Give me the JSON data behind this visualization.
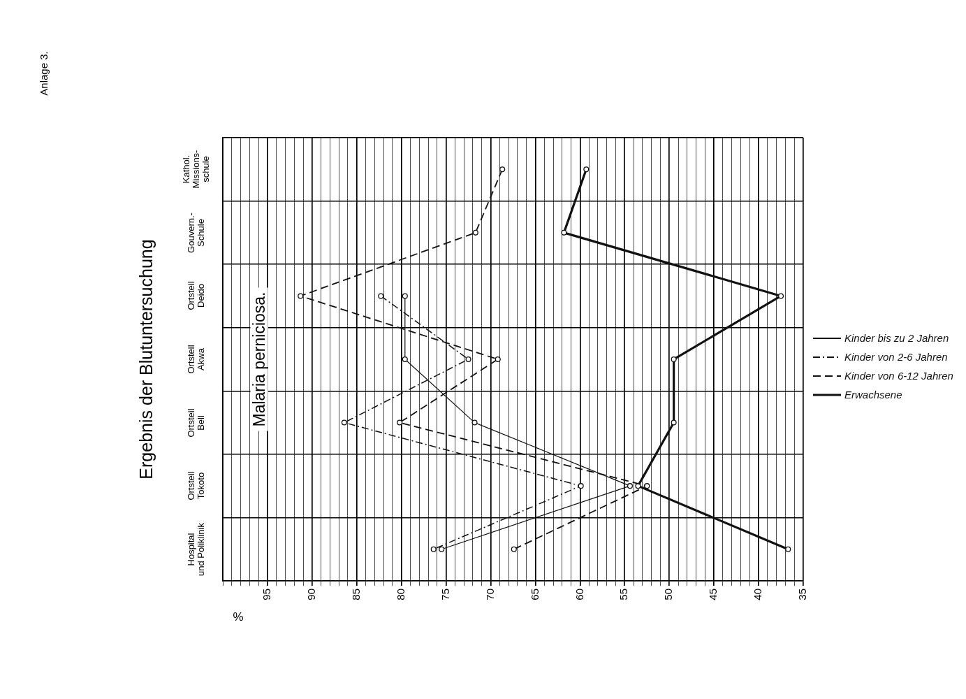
{
  "chart_data": {
    "type": "line",
    "orientation": "horizontal",
    "title": "Ergebnis der Blutuntersuchung",
    "subtitle": "Malaria perniciosa.",
    "xlabel": "%",
    "annotations": [
      "Anlage 3."
    ],
    "categories": [
      "Kathol.\nMissions-\nschule",
      "Gouvern.-\nSchule",
      "Ortsteil\nDeido",
      "Ortsteil\nAkwa",
      "Ortsteil\nBell",
      "Ortsteil\nTokoto",
      "Hospital\nund Poliklinik"
    ],
    "series": [
      {
        "name": "Kinder bis zu 2 Jahren",
        "color": "#111111",
        "line_style": "solid",
        "values": [
          null,
          null,
          79.6,
          79.6,
          71.8,
          54.4,
          75.5
        ]
      },
      {
        "name": "Kinder von 2-6 Jahren",
        "color": "#111111",
        "line_style": "dashdot",
        "values": [
          null,
          null,
          82.3,
          72.5,
          86.4,
          59.9,
          76.4
        ]
      },
      {
        "name": "Kinder von 6-12 Jahren",
        "color": "#111111",
        "line_style": "dashed",
        "values": [
          68.7,
          71.7,
          91.3,
          69.2,
          80.2,
          52.5,
          67.4
        ]
      },
      {
        "name": "Erwachsene",
        "color": "#111111",
        "line_style": "solid",
        "values": [
          59.3,
          61.8,
          37.5,
          49.5,
          49.5,
          53.5,
          36.7
        ]
      }
    ],
    "xlim": [
      100,
      35
    ],
    "xticks": [
      35,
      {
        "value": 36,
        "label": null
      },
      {
        "value": 37,
        "label": null
      },
      {
        "value": 38,
        "label": null
      },
      {
        "value": 39,
        "label": null
      },
      40,
      {
        "value": 41,
        "label": null
      },
      {
        "value": 42,
        "label": null
      },
      {
        "value": 43,
        "label": null
      },
      {
        "value": 44,
        "label": null
      },
      45,
      {
        "value": 46,
        "label": null
      },
      {
        "value": 47,
        "label": null
      },
      {
        "value": 48,
        "label": null
      },
      {
        "value": 49,
        "label": null
      },
      50,
      {
        "value": 51,
        "label": null
      },
      {
        "value": 52,
        "label": null
      },
      {
        "value": 53,
        "label": null
      },
      {
        "value": 54,
        "label": null
      },
      55,
      {
        "value": 56,
        "label": null
      },
      {
        "value": 57,
        "label": null
      },
      {
        "value": 58,
        "label": null
      },
      {
        "value": 59,
        "label": null
      },
      60,
      {
        "value": 61,
        "label": null
      },
      {
        "value": 62,
        "label": null
      },
      {
        "value": 63,
        "label": null
      },
      {
        "value": 64,
        "label": null
      },
      65,
      {
        "value": 66,
        "label": null
      },
      {
        "value": 67,
        "label": null
      },
      {
        "value": 68,
        "label": null
      },
      {
        "value": 69,
        "label": null
      },
      70,
      {
        "value": 71,
        "label": null
      },
      {
        "value": 72,
        "label": null
      },
      {
        "value": 73,
        "label": null
      },
      {
        "value": 74,
        "label": null
      },
      75,
      {
        "value": 76,
        "label": null
      },
      {
        "value": 77,
        "label": null
      },
      {
        "value": 78,
        "label": null
      },
      {
        "value": 79,
        "label": null
      },
      80,
      {
        "value": 81,
        "label": null
      },
      {
        "value": 82,
        "label": null
      },
      {
        "value": 83,
        "label": null
      },
      {
        "value": 84,
        "label": null
      },
      85,
      {
        "value": 86,
        "label": null
      },
      {
        "value": 87,
        "label": null
      },
      {
        "value": 88,
        "label": null
      },
      {
        "value": 89,
        "label": null
      },
      90,
      {
        "value": 91,
        "label": null
      },
      {
        "value": 92,
        "label": null
      },
      {
        "value": 93,
        "label": null
      },
      {
        "value": 94,
        "label": null
      },
      95,
      {
        "value": 96,
        "label": null
      },
      {
        "value": 97,
        "label": null
      },
      {
        "value": 98,
        "label": null
      },
      {
        "value": 99,
        "label": null
      },
      {
        "value": 100,
        "label": null
      }
    ],
    "grid": true,
    "legend": "right",
    "marker": "circle"
  }
}
